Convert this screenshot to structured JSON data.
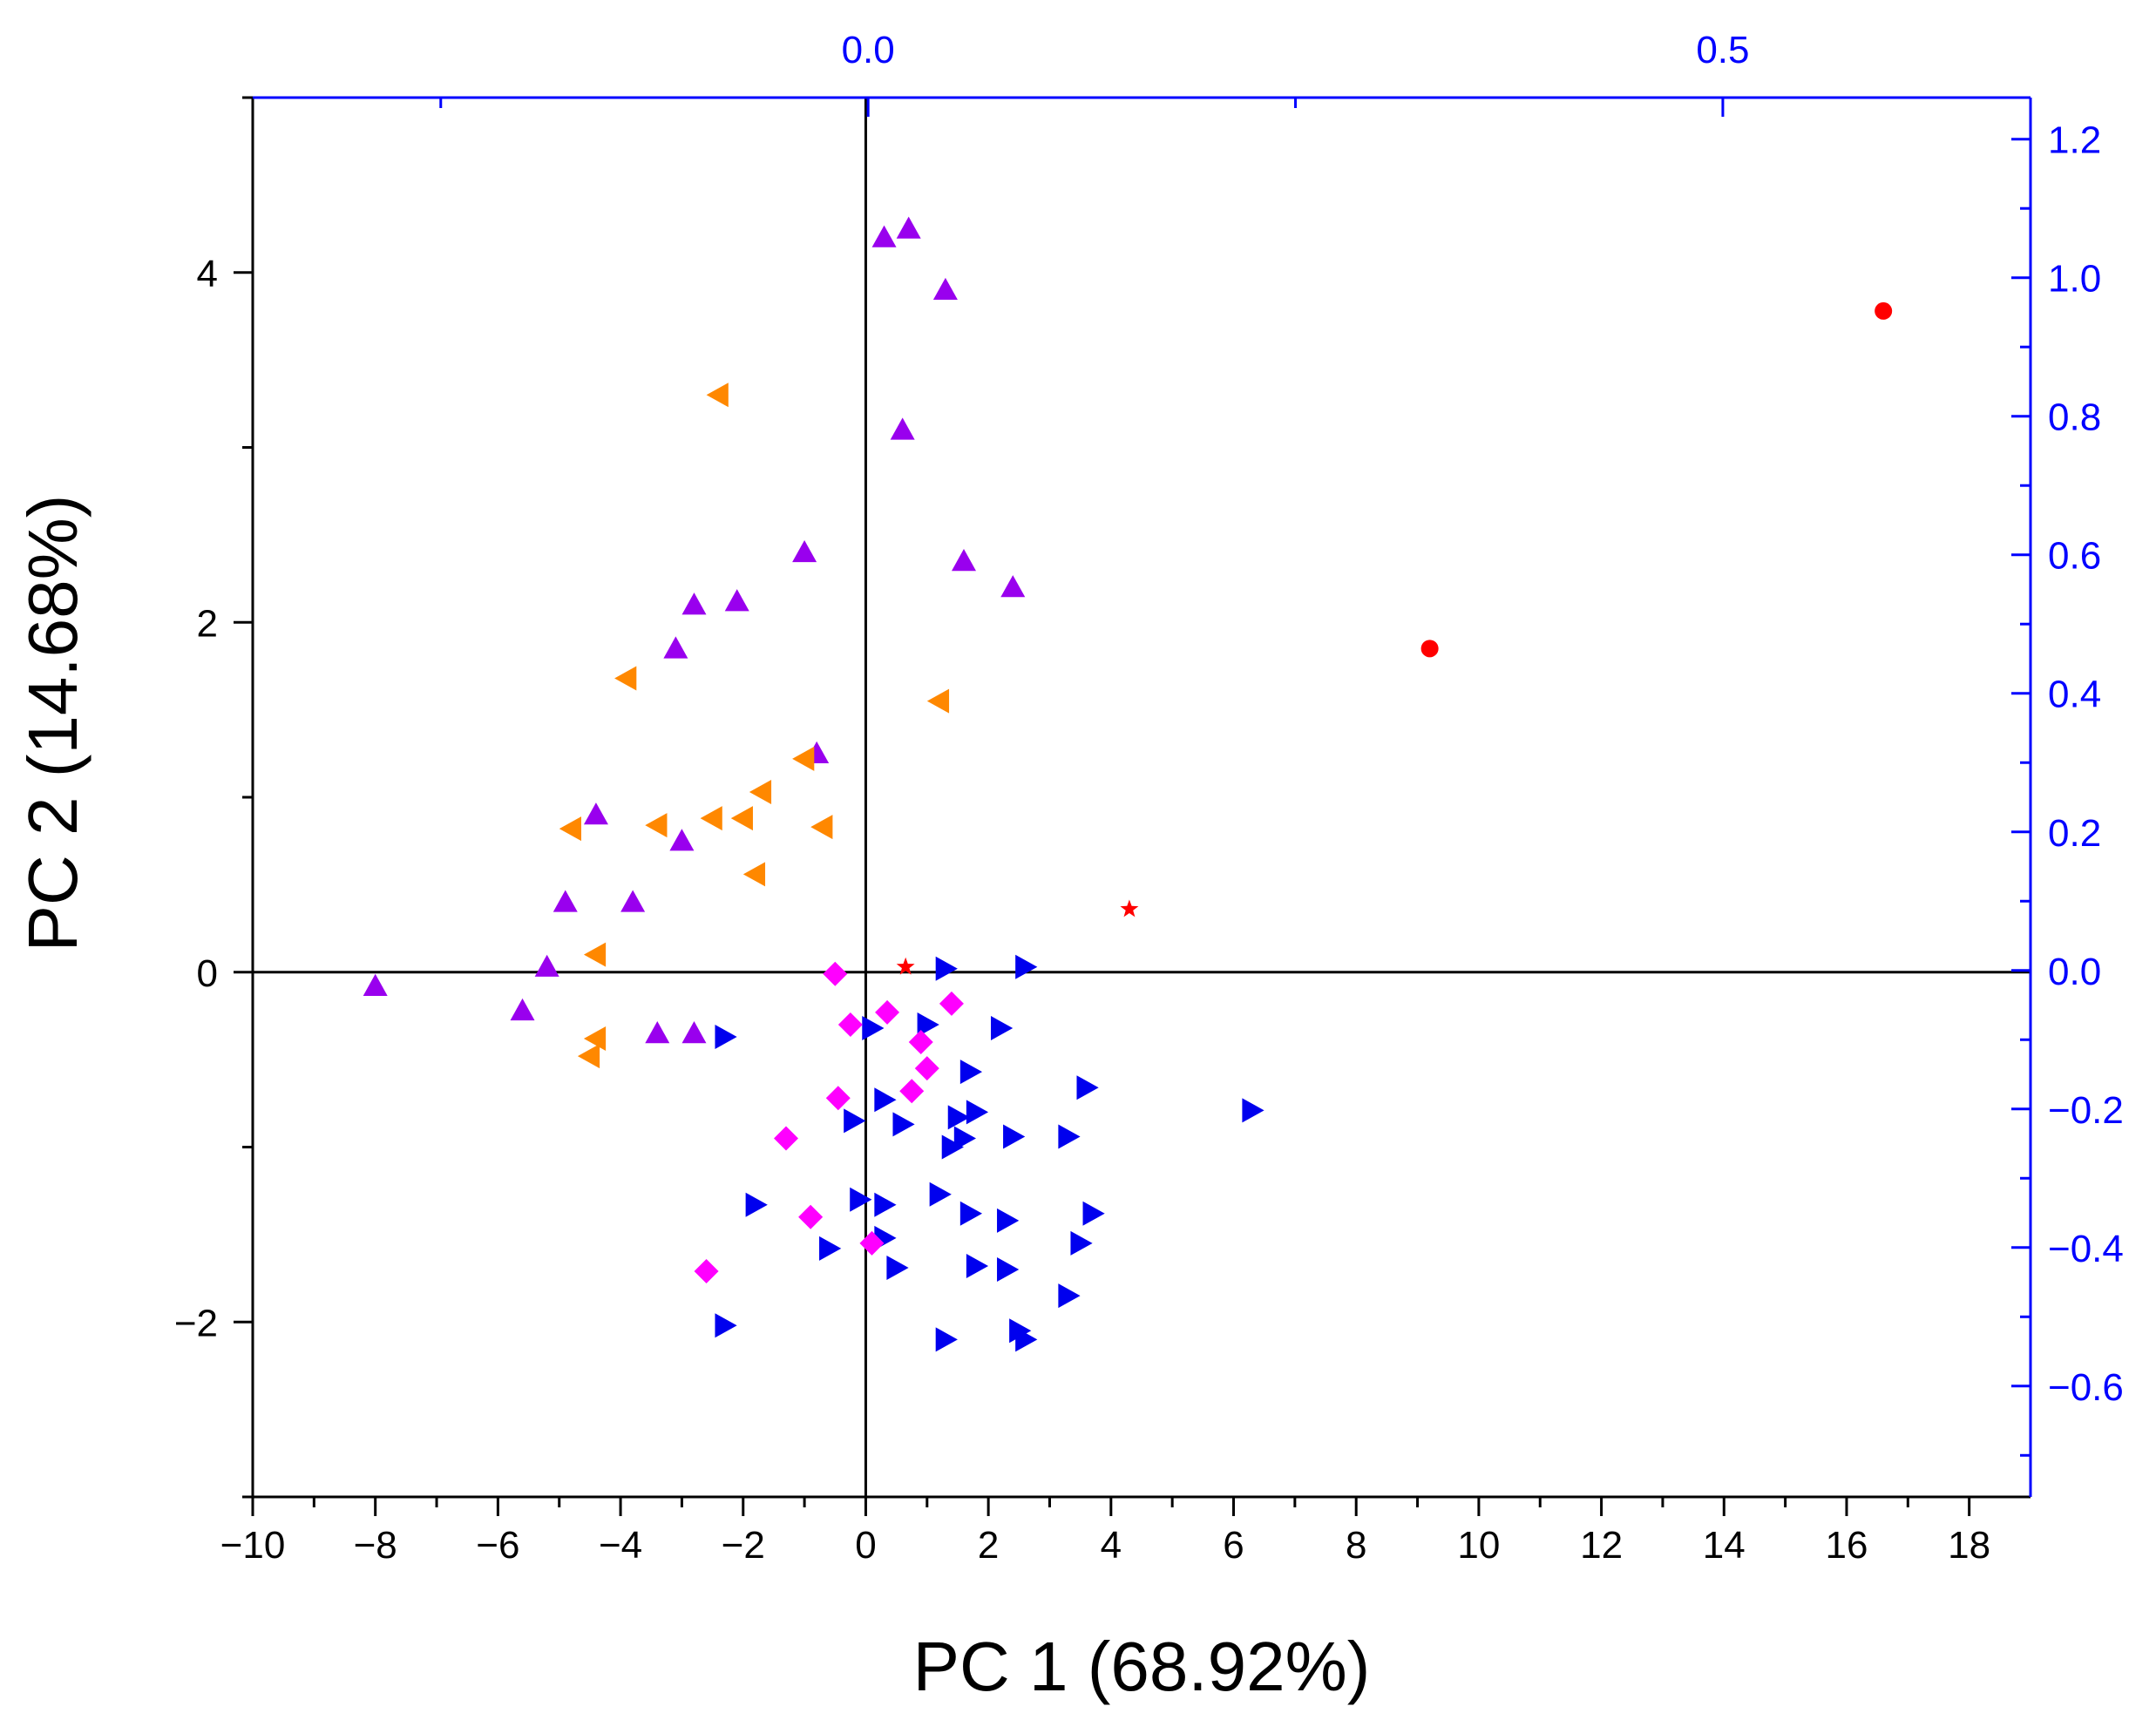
{
  "chart_data": {
    "type": "scatter",
    "title": "",
    "xlabel": "PC 1 (68.92%)",
    "ylabel": "PC 2 (14.68%)",
    "xlim": [
      -10,
      19
    ],
    "ylim": [
      -3,
      5
    ],
    "x_ticks": [
      -10,
      -8,
      -6,
      -4,
      -2,
      0,
      2,
      4,
      6,
      8,
      10,
      12,
      14,
      16,
      18
    ],
    "x_tick_labels": [
      "−10",
      "−8",
      "−6",
      "−4",
      "−2",
      "0",
      "2",
      "4",
      "6",
      "8",
      "10",
      "12",
      "14",
      "16",
      "18"
    ],
    "y_ticks": [
      -2,
      0,
      2,
      4
    ],
    "y_tick_labels": [
      "−2",
      "0",
      "2",
      "4"
    ],
    "secondary_x": {
      "lim": [
        -0.36,
        0.68
      ],
      "ticks": [
        0.0,
        0.5
      ],
      "tick_labels": [
        "0.0",
        "0.5"
      ],
      "color": "#0000ff"
    },
    "secondary_y": {
      "lim": [
        -0.76,
        1.26
      ],
      "ticks": [
        -0.6,
        -0.4,
        -0.2,
        0.0,
        0.2,
        0.4,
        0.6,
        0.8,
        1.0,
        1.2
      ],
      "tick_labels": [
        "−0.6",
        "−0.4",
        "−0.2",
        "0.0",
        "0.2",
        "0.4",
        "0.6",
        "0.8",
        "1.0",
        "1.2"
      ],
      "color": "#0000ff"
    },
    "grid": false,
    "legend": "none",
    "series": [
      {
        "name": "purple-triangle-up",
        "marker": "triangle-up",
        "color": "#9900ee",
        "points": [
          [
            0.3,
            4.2
          ],
          [
            0.7,
            4.25
          ],
          [
            1.3,
            3.9
          ],
          [
            0.6,
            3.1
          ],
          [
            -1.0,
            2.4
          ],
          [
            1.6,
            2.35
          ],
          [
            2.4,
            2.2
          ],
          [
            -2.8,
            2.1
          ],
          [
            -2.1,
            2.12
          ],
          [
            -3.1,
            1.85
          ],
          [
            -0.8,
            1.25
          ],
          [
            -4.4,
            0.9
          ],
          [
            -3.0,
            0.75
          ],
          [
            -4.9,
            0.4
          ],
          [
            -3.8,
            0.4
          ],
          [
            -5.2,
            0.03
          ],
          [
            -8.0,
            -0.08
          ],
          [
            -5.6,
            -0.22
          ],
          [
            -3.4,
            -0.35
          ],
          [
            -2.8,
            -0.35
          ]
        ]
      },
      {
        "name": "orange-triangle-left",
        "marker": "triangle-left",
        "color": "#ff8800",
        "points": [
          [
            -2.4,
            3.3
          ],
          [
            -3.9,
            1.68
          ],
          [
            1.2,
            1.55
          ],
          [
            -1.0,
            1.22
          ],
          [
            -1.7,
            1.03
          ],
          [
            -2.5,
            0.88
          ],
          [
            -2.0,
            0.88
          ],
          [
            -3.4,
            0.84
          ],
          [
            -4.8,
            0.82
          ],
          [
            -0.7,
            0.83
          ],
          [
            -1.8,
            0.56
          ],
          [
            -4.4,
            0.1
          ],
          [
            -4.4,
            -0.38
          ],
          [
            -4.5,
            -0.48
          ]
        ]
      },
      {
        "name": "blue-triangle-right",
        "marker": "triangle-right",
        "color": "#0000ee",
        "points": [
          [
            1.3,
            0.02
          ],
          [
            2.6,
            0.03
          ],
          [
            -2.3,
            -0.37
          ],
          [
            0.1,
            -0.32
          ],
          [
            1.0,
            -0.3
          ],
          [
            2.2,
            -0.32
          ],
          [
            1.7,
            -0.57
          ],
          [
            3.6,
            -0.66
          ],
          [
            0.3,
            -0.73
          ],
          [
            1.5,
            -0.83
          ],
          [
            1.8,
            -0.8
          ],
          [
            6.3,
            -0.79
          ],
          [
            -0.2,
            -0.85
          ],
          [
            0.6,
            -0.87
          ],
          [
            1.6,
            -0.95
          ],
          [
            1.4,
            -1.0
          ],
          [
            2.4,
            -0.94
          ],
          [
            3.3,
            -0.94
          ],
          [
            -0.1,
            -1.3
          ],
          [
            0.3,
            -1.33
          ],
          [
            1.2,
            -1.27
          ],
          [
            -1.8,
            -1.33
          ],
          [
            1.7,
            -1.38
          ],
          [
            2.3,
            -1.42
          ],
          [
            3.7,
            -1.38
          ],
          [
            -0.6,
            -1.58
          ],
          [
            0.3,
            -1.52
          ],
          [
            3.5,
            -1.55
          ],
          [
            0.5,
            -1.69
          ],
          [
            1.8,
            -1.68
          ],
          [
            2.3,
            -1.7
          ],
          [
            3.3,
            -1.85
          ],
          [
            -2.3,
            -2.02
          ],
          [
            1.3,
            -2.1
          ],
          [
            2.5,
            -2.05
          ],
          [
            2.6,
            -2.1
          ]
        ]
      },
      {
        "name": "magenta-diamond",
        "marker": "diamond",
        "color": "#ff00ff",
        "points": [
          [
            -0.5,
            -0.01
          ],
          [
            1.4,
            -0.18
          ],
          [
            0.35,
            -0.23
          ],
          [
            -0.25,
            -0.3
          ],
          [
            0.9,
            -0.4
          ],
          [
            1.0,
            -0.55
          ],
          [
            0.75,
            -0.68
          ],
          [
            -0.45,
            -0.72
          ],
          [
            -1.3,
            -0.95
          ],
          [
            -0.9,
            -1.4
          ],
          [
            0.1,
            -1.55
          ],
          [
            -2.6,
            -1.71
          ]
        ]
      },
      {
        "name": "red-circle",
        "marker": "circle",
        "color": "#ff0000",
        "points": [
          [
            16.6,
            3.78
          ],
          [
            9.2,
            1.85
          ]
        ]
      },
      {
        "name": "red-star",
        "marker": "star",
        "color": "#ff0000",
        "points": [
          [
            4.3,
            0.36
          ],
          [
            0.65,
            0.03
          ]
        ]
      }
    ]
  }
}
